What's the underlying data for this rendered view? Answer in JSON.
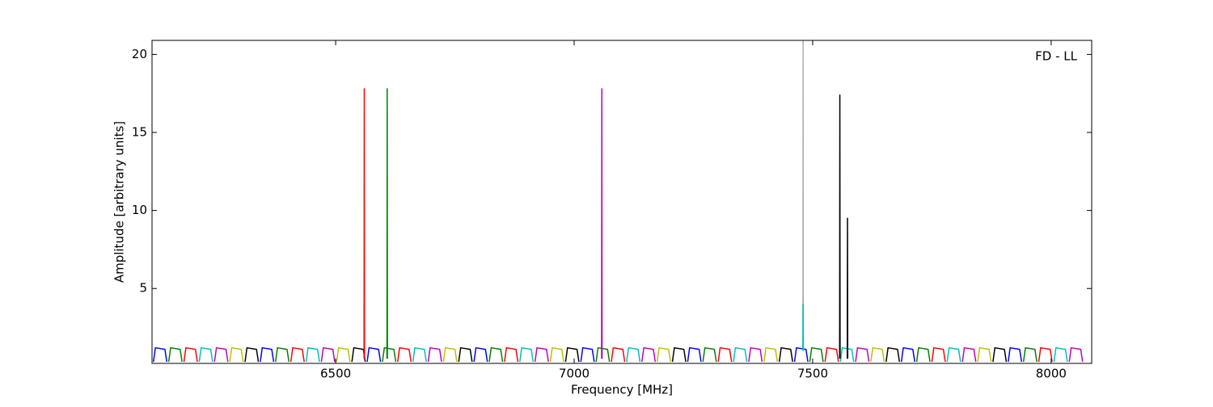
{
  "chart_data": {
    "type": "line",
    "xlabel": "Frequency [MHz]",
    "ylabel": "Amplitude [arbitrary units]",
    "annotation": "FD - LL",
    "xlim": [
      6115,
      8085
    ],
    "ylim": [
      0.2,
      20.9
    ],
    "xticks": [
      6500,
      7000,
      7500,
      8000
    ],
    "yticks": [
      5,
      10,
      15,
      20
    ],
    "series": [
      {
        "color": "#0000ff",
        "x": [
          6118,
          6122,
          6142,
          6146,
          null,
          6342,
          6346,
          6366,
          6370,
          null,
          6566,
          6570,
          6590,
          6594,
          null,
          6790,
          6794,
          6814,
          6818,
          null,
          7014,
          7018,
          7038,
          7042,
          null,
          7238,
          7242,
          7262,
          7266,
          null,
          7462,
          7466,
          7486,
          7490,
          null,
          7686,
          7690,
          7710,
          7714,
          null,
          7910,
          7914,
          7934,
          7938
        ],
        "values": [
          0.3,
          1.2,
          1.1,
          0.3,
          null,
          0.3,
          1.2,
          1.1,
          0.3,
          null,
          0.3,
          1.2,
          1.1,
          0.3,
          null,
          0.3,
          1.2,
          1.1,
          0.3,
          null,
          0.3,
          1.2,
          1.1,
          0.3,
          null,
          0.3,
          1.2,
          1.1,
          0.3,
          null,
          0.3,
          1.2,
          1.1,
          0.3,
          null,
          0.3,
          1.2,
          1.1,
          0.3,
          null,
          0.3,
          1.2,
          1.1,
          0.3
        ]
      },
      {
        "color": "#008000",
        "x": [
          6150,
          6154,
          6174,
          6178,
          null,
          6374,
          6378,
          6398,
          6402,
          null,
          6598,
          6602,
          6622,
          6626,
          null,
          6822,
          6826,
          6846,
          6850,
          null,
          7046,
          7050,
          7070,
          7074,
          null,
          7270,
          7274,
          7294,
          7298,
          null,
          7494,
          7498,
          7518,
          7522,
          null,
          7718,
          7722,
          7742,
          7746,
          null,
          7942,
          7946,
          7966,
          7970
        ],
        "values": [
          0.3,
          1.2,
          1.1,
          0.3,
          null,
          0.3,
          1.2,
          1.1,
          0.3,
          null,
          0.3,
          1.2,
          1.1,
          0.3,
          null,
          0.3,
          1.2,
          1.1,
          0.3,
          null,
          0.3,
          1.2,
          1.1,
          0.3,
          null,
          0.3,
          1.2,
          1.1,
          0.3,
          null,
          0.3,
          1.2,
          1.1,
          0.3,
          null,
          0.3,
          1.2,
          1.1,
          0.3,
          null,
          0.3,
          1.2,
          1.1,
          0.3
        ]
      },
      {
        "color": "#ff0000",
        "x": [
          6182,
          6186,
          6206,
          6210,
          null,
          6406,
          6410,
          6430,
          6434,
          null,
          6630,
          6634,
          6654,
          6658,
          null,
          6854,
          6858,
          6878,
          6882,
          null,
          7078,
          7082,
          7102,
          7106,
          null,
          7302,
          7306,
          7326,
          7330,
          null,
          7526,
          7530,
          7550,
          7554,
          null,
          7750,
          7754,
          7774,
          7778,
          null,
          7974,
          7978,
          7998,
          8002
        ],
        "values": [
          0.3,
          1.2,
          1.1,
          0.3,
          null,
          0.3,
          1.2,
          1.1,
          0.3,
          null,
          0.3,
          1.2,
          1.1,
          0.3,
          null,
          0.3,
          1.2,
          1.1,
          0.3,
          null,
          0.3,
          1.2,
          1.1,
          0.3,
          null,
          0.3,
          1.2,
          1.1,
          0.3,
          null,
          0.3,
          1.2,
          1.1,
          0.3,
          null,
          0.3,
          1.2,
          1.1,
          0.3,
          null,
          0.3,
          1.2,
          1.1,
          0.3
        ]
      },
      {
        "color": "#00bfbf",
        "x": [
          6214,
          6218,
          6238,
          6242,
          null,
          6438,
          6442,
          6462,
          6466,
          null,
          6662,
          6666,
          6686,
          6690,
          null,
          6886,
          6890,
          6910,
          6914,
          null,
          7110,
          7114,
          7134,
          7138,
          null,
          7334,
          7338,
          7358,
          7362,
          null,
          7558,
          7562,
          7582,
          7586,
          null,
          7782,
          7786,
          7806,
          7810,
          null,
          8006,
          8010,
          8030,
          8034
        ],
        "values": [
          0.3,
          1.2,
          1.1,
          0.3,
          null,
          0.3,
          1.2,
          1.1,
          0.3,
          null,
          0.3,
          1.2,
          1.1,
          0.3,
          null,
          0.3,
          1.2,
          1.1,
          0.3,
          null,
          0.3,
          1.2,
          1.1,
          0.3,
          null,
          0.3,
          1.2,
          1.1,
          0.3,
          null,
          0.3,
          1.2,
          1.1,
          0.3,
          null,
          0.3,
          1.2,
          1.1,
          0.3,
          null,
          0.3,
          1.2,
          1.1,
          0.3
        ]
      },
      {
        "color": "#bf00bf",
        "x": [
          6246,
          6250,
          6270,
          6274,
          null,
          6470,
          6474,
          6494,
          6498,
          null,
          6694,
          6698,
          6718,
          6722,
          null,
          6918,
          6922,
          6942,
          6946,
          null,
          7142,
          7146,
          7166,
          7170,
          null,
          7366,
          7370,
          7390,
          7394,
          null,
          7590,
          7594,
          7614,
          7618,
          null,
          7814,
          7818,
          7838,
          7842,
          null,
          8038,
          8042,
          8062,
          8066
        ],
        "values": [
          0.3,
          1.2,
          1.1,
          0.3,
          null,
          0.3,
          1.2,
          1.1,
          0.3,
          null,
          0.3,
          1.2,
          1.1,
          0.3,
          null,
          0.3,
          1.2,
          1.1,
          0.3,
          null,
          0.3,
          1.2,
          1.1,
          0.3,
          null,
          0.3,
          1.2,
          1.1,
          0.3,
          null,
          0.3,
          1.2,
          1.1,
          0.3,
          null,
          0.3,
          1.2,
          1.1,
          0.3,
          null,
          0.3,
          1.2,
          1.1,
          0.3
        ]
      },
      {
        "color": "#bfbf00",
        "x": [
          6278,
          6282,
          6302,
          6306,
          null,
          6502,
          6506,
          6526,
          6530,
          null,
          6726,
          6730,
          6750,
          6754,
          null,
          6950,
          6954,
          6974,
          6978,
          null,
          7174,
          7178,
          7198,
          7202,
          null,
          7398,
          7402,
          7422,
          7426,
          null,
          7622,
          7626,
          7646,
          7650,
          null,
          7846,
          7850,
          7870,
          7874
        ],
        "values": [
          0.3,
          1.2,
          1.1,
          0.3,
          null,
          0.3,
          1.2,
          1.1,
          0.3,
          null,
          0.3,
          1.2,
          1.1,
          0.3,
          null,
          0.3,
          1.2,
          1.1,
          0.3,
          null,
          0.3,
          1.2,
          1.1,
          0.3,
          null,
          0.3,
          1.2,
          1.1,
          0.3,
          null,
          0.3,
          1.2,
          1.1,
          0.3,
          null,
          0.3,
          1.2,
          1.1,
          0.3
        ]
      },
      {
        "color": "#000000",
        "x": [
          6310,
          6314,
          6334,
          6338,
          null,
          6534,
          6538,
          6558,
          6562,
          null,
          6758,
          6762,
          6782,
          6786,
          null,
          6982,
          6986,
          7006,
          7010,
          null,
          7206,
          7210,
          7230,
          7234,
          null,
          7430,
          7434,
          7454,
          7458,
          null,
          7654,
          7658,
          7678,
          7682,
          null,
          7878,
          7882,
          7902,
          7906
        ],
        "values": [
          0.3,
          1.2,
          1.1,
          0.3,
          null,
          0.3,
          1.2,
          1.1,
          0.3,
          null,
          0.3,
          1.2,
          1.1,
          0.3,
          null,
          0.3,
          1.2,
          1.1,
          0.3,
          null,
          0.3,
          1.2,
          1.1,
          0.3,
          null,
          0.3,
          1.2,
          1.1,
          0.3,
          null,
          0.3,
          1.2,
          1.1,
          0.3,
          null,
          0.3,
          1.2,
          1.1,
          0.3
        ]
      },
      {
        "color": "#b0b0b0",
        "x": [
          7479.5,
          7480,
          7480.5
        ],
        "values": [
          1.0,
          20.9,
          1.0
        ]
      },
      {
        "color": "#00bfbf",
        "x": [
          7479.5,
          7480,
          7480.5
        ],
        "values": [
          1.0,
          4.0,
          1.0
        ]
      },
      {
        "color": "#ff0000",
        "x": [
          6559.5,
          6560,
          6560.5
        ],
        "values": [
          0.5,
          17.8,
          0.5
        ]
      },
      {
        "color": "#008000",
        "x": [
          6607.5,
          6608,
          6608.5
        ],
        "values": [
          0.5,
          17.8,
          0.5
        ]
      },
      {
        "color": "#bf00bf",
        "x": [
          7057.5,
          7058,
          7058.5
        ],
        "values": [
          0.5,
          17.8,
          0.5
        ]
      },
      {
        "color": "#000000",
        "x": [
          7556.5,
          7557,
          7557.5,
          null,
          7572.5,
          7573,
          7573.5
        ],
        "values": [
          0.5,
          17.4,
          0.5,
          null,
          0.5,
          9.5,
          0.5
        ]
      }
    ]
  }
}
